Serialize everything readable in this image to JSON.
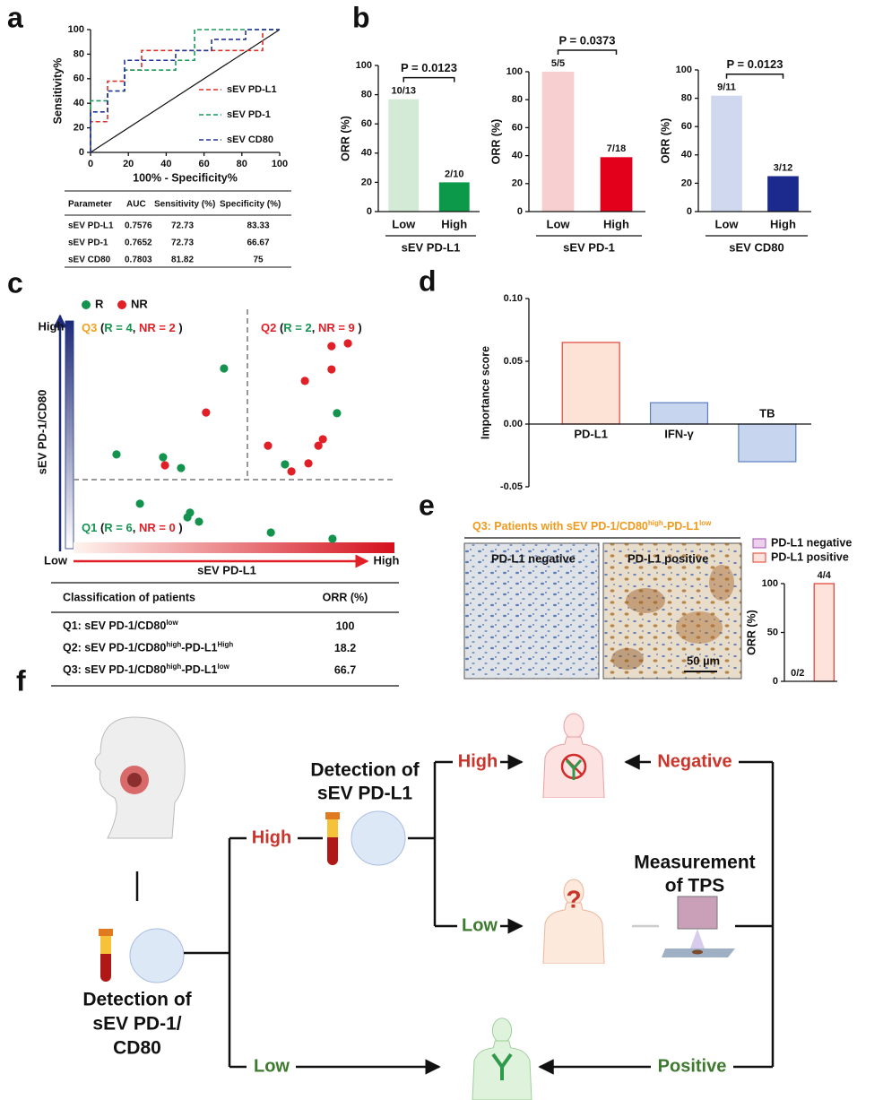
{
  "panel_labels": [
    "a",
    "b",
    "c",
    "d",
    "e",
    "f"
  ],
  "chart_data": [
    {
      "type": "line",
      "ylabel": "Sensitivity%",
      "xlabel": "100% - Specificity%",
      "dashed": true,
      "xlim": [
        0,
        100
      ],
      "ylim": [
        0,
        100
      ],
      "xticks": [
        0,
        20,
        40,
        60,
        80,
        100
      ],
      "yticks": [
        0,
        20,
        40,
        60,
        80,
        100
      ],
      "series": [
        {
          "name": "sEV PD-L1",
          "color": "#e0302a",
          "x": [
            0,
            0,
            9,
            9,
            18,
            18,
            27,
            27,
            91,
            91,
            100
          ],
          "values": [
            0,
            25,
            25,
            58,
            58,
            67,
            67,
            83,
            83,
            100,
            100
          ]
        },
        {
          "name": "sEV PD-1",
          "color": "#1a9a5a",
          "x": [
            0,
            0,
            9,
            9,
            18,
            18,
            45,
            45,
            55,
            55,
            100
          ],
          "values": [
            0,
            42,
            42,
            50,
            50,
            67,
            67,
            75,
            75,
            100,
            100
          ]
        },
        {
          "name": "sEV CD80",
          "color": "#23349a",
          "x": [
            0,
            0,
            9,
            9,
            18,
            18,
            45,
            45,
            64,
            64,
            82,
            82,
            100
          ],
          "values": [
            0,
            33,
            33,
            50,
            50,
            75,
            75,
            83,
            83,
            92,
            92,
            100,
            100
          ]
        }
      ]
    },
    {
      "type": "bar",
      "ylabel": "ORR (%)",
      "xlabel": "sEV PD-L1",
      "annotation": "P = 0.0123",
      "categories": [
        "Low",
        "High"
      ],
      "values": [
        76.9,
        20
      ],
      "value_labels": [
        "10/13",
        "2/10"
      ],
      "colors": [
        "#d3ead6",
        "#0c9a4a"
      ],
      "ylim": [
        0,
        100
      ],
      "yticks": [
        0,
        20,
        40,
        60,
        80,
        100
      ]
    },
    {
      "type": "bar",
      "ylabel": "ORR (%)",
      "xlabel": "sEV PD-1",
      "annotation": "P = 0.0373",
      "categories": [
        "Low",
        "High"
      ],
      "values": [
        100,
        38.9
      ],
      "value_labels": [
        "5/5",
        "7/18"
      ],
      "colors": [
        "#f7cfd0",
        "#e3001b"
      ],
      "ylim": [
        0,
        100
      ],
      "yticks": [
        0,
        20,
        40,
        60,
        80,
        100
      ]
    },
    {
      "type": "bar",
      "ylabel": "ORR (%)",
      "xlabel": "sEV CD80",
      "annotation": "P = 0.0123",
      "categories": [
        "Low",
        "High"
      ],
      "values": [
        81.8,
        25
      ],
      "value_labels": [
        "9/11",
        "3/12"
      ],
      "colors": [
        "#cfd8ee",
        "#1b2a8c"
      ],
      "ylim": [
        0,
        100
      ],
      "yticks": [
        0,
        20,
        40,
        60,
        80,
        100
      ]
    },
    {
      "type": "scatter",
      "xlabel": "sEV PD-L1",
      "ylabel": "sEV PD-1/CD80",
      "axis_labels": {
        "low": "Low",
        "x_high": "High",
        "y_high": "High"
      },
      "xlim": [
        0,
        100
      ],
      "ylim": [
        0,
        100
      ],
      "series": [
        {
          "name": "R",
          "color": "#14934f",
          "x": [
            46.9,
            13.4,
            27.9,
            33.5,
            82.1,
            65.9,
            20.7,
            36.3,
            35.5,
            39.1,
            61.5,
            80.7
          ],
          "values": [
            78.2,
            40.9,
            39.7,
            35.0,
            58.8,
            36.6,
            19.5,
            15.6,
            13.6,
            11.7,
            7.0,
            4.3
          ]
        },
        {
          "name": "NR",
          "color": "#e01f26",
          "x": [
            41.3,
            28.5,
            80.4,
            85.5,
            80.4,
            72.1,
            77.7,
            76.3,
            60.6,
            73.2,
            67.9
          ],
          "values": [
            59.1,
            36.2,
            87.9,
            89.1,
            77.8,
            72.8,
            47.5,
            44.7,
            44.7,
            37.0,
            33.5
          ]
        }
      ],
      "quadrants": [
        {
          "color": "#f0a21e",
          "parts": [
            "Q3",
            " (",
            "R = 4",
            ", ",
            "NR = 2",
            " )"
          ]
        },
        {
          "color": "#e01f26",
          "parts": [
            "Q2",
            " (",
            "R = 2",
            ", ",
            "NR = 9",
            " )"
          ]
        },
        {
          "color": "#14934f",
          "parts": [
            "Q1",
            " (",
            "R = 6",
            ", ",
            "NR = 0",
            " )"
          ]
        }
      ]
    },
    {
      "type": "bar",
      "ylabel": "Importance score",
      "categories": [
        "PD-L1",
        "IFN-γ",
        "TB"
      ],
      "values": [
        0.065,
        0.017,
        -0.03
      ],
      "colors": [
        "#fde3d6",
        "#c8d5ee",
        "#c8d5ee"
      ],
      "edge_colors": [
        "#e0443a",
        "#5b7fc1",
        "#5b7fc1"
      ],
      "ylim": [
        -0.05,
        0.1
      ],
      "yticks": [
        {
          "value": 0.1,
          "label": "0.10"
        },
        0.05,
        {
          "value": 0,
          "label": "0.00"
        },
        -0.05
      ]
    },
    {
      "type": "bar",
      "ylabel": "ORR (%)",
      "categories": [
        null,
        null
      ],
      "ylim": [
        0,
        100
      ],
      "yticks": [
        0,
        50,
        100
      ],
      "series": [
        {
          "name": "PD-L1 negative",
          "color": "#ecd0ee",
          "edge_color": "#a050b0",
          "values": [
            0,
            null
          ],
          "value_labels": [
            "0/2",
            null
          ]
        },
        {
          "name": "PD-L1 positive",
          "color": "#fde3dc",
          "edge_color": "#e23b2e",
          "values": [
            null,
            100
          ],
          "value_labels": [
            null,
            "4/4"
          ]
        }
      ]
    }
  ],
  "roc_table": {
    "header": [
      "Parameter",
      "AUC",
      "Sensitivity (%)",
      "Specificity (%)"
    ],
    "rows": [
      [
        "sEV PD-L1",
        0.7576,
        72.73,
        83.33
      ],
      [
        "sEV PD-1",
        0.7652,
        72.73,
        66.67
      ],
      [
        "sEV CD80",
        0.7803,
        81.82,
        75
      ]
    ]
  },
  "class_table": {
    "header": [
      "Classification of patients",
      "ORR (%)"
    ],
    "rows": [
      {
        "label": [
          "Q1: sEV PD-1/CD80",
          "low"
        ],
        "orr": 100
      },
      {
        "label": [
          "Q2: sEV PD-1/CD80",
          "high",
          "-PD-L1",
          "High"
        ],
        "orr": 18.2
      },
      {
        "label": [
          "Q3: sEV PD-1/CD80",
          "high",
          "-PD-L1",
          "low"
        ],
        "orr": 66.7
      }
    ]
  },
  "e_title": [
    "Q3: Patients with sEV PD-1/CD80",
    "high",
    "-PD-L1",
    "low"
  ],
  "histology": {
    "panels": [
      "PD-L1 negative",
      "PD-L1 positive"
    ],
    "scale_bar": "50 µm"
  },
  "flow": {
    "detect_pd1": [
      "Detection of",
      "sEV PD-1/",
      "CD80"
    ],
    "detect_pdl1": [
      "Detection of",
      "sEV PD-L1"
    ],
    "high_1": "High",
    "low_1": "Low",
    "high_2": "High",
    "low_2": "Low",
    "negative": "Negative",
    "positive": "Positive",
    "tps": [
      "Measurement",
      "of TPS"
    ],
    "unknown": "?"
  }
}
